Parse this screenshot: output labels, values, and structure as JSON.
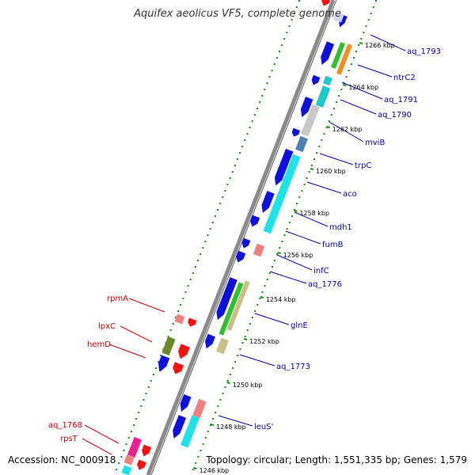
{
  "title": "Aquifex aeolicus VF5, complete genome",
  "footer": {
    "accession": "Accession: NC_000918",
    "topology": "Topology: circular; Length: 1,551,335 bp; Genes: 1,579"
  },
  "colors": {
    "backbone": "#888888",
    "gene_blue": "#1010dd",
    "cyan": "#20e0e8",
    "teal": "#20c8c8",
    "gray": "#c8c8c8",
    "steel": "#5080b0",
    "green": "#30c030",
    "orange": "#f09020",
    "olive": "#6a8a2a",
    "khaki": "#c8c088",
    "pink": "#f08080",
    "red": "#ff1010",
    "magenta": "#e8208a",
    "lavender": "#d0d4f4",
    "label_blue": "#0000aa",
    "label_red": "#cc0000",
    "dot_green": "#129012"
  },
  "scale_ticks": [
    "1266 kbp",
    "1264 kbp",
    "1262 kbp",
    "1260 kbp",
    "1258 kbp",
    "1256 kbp",
    "1254 kbp",
    "1252 kbp",
    "1250 kbp",
    "1248 kbp",
    "1246 kbp"
  ],
  "genes_right": [
    "aq_1793",
    "ntrC2",
    "aq_1791",
    "aq_1790",
    "mviB",
    "trpC",
    "aco",
    "mdh1",
    "fumB",
    "infC",
    "aq_1776",
    "glnE",
    "aq_1773",
    "leuS'"
  ],
  "genes_left": [
    "rpmA",
    "lpxC",
    "hemD",
    "aq_1768",
    "rpsT"
  ]
}
